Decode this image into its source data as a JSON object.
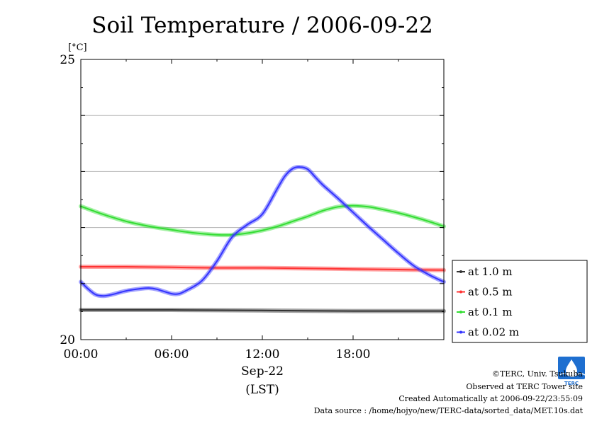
{
  "chart_data": {
    "type": "line",
    "title": "Soil Temperature / 2006-09-22",
    "ylabel": "[°C]",
    "ylim": [
      20,
      25
    ],
    "yticks": [
      "25",
      "20"
    ],
    "xlim": [
      0,
      24
    ],
    "xticks": [
      {
        "hour": 0,
        "label": "00:00"
      },
      {
        "hour": 6,
        "label": "06:00"
      },
      {
        "hour": 12,
        "label": "12:00"
      },
      {
        "hour": 18,
        "label": "18:00"
      }
    ],
    "xlabel_date": "Sep-22",
    "xlabel_zone": "(LST)",
    "grid": true,
    "legend_position": "right",
    "series": [
      {
        "name": "at 1.0 m",
        "color": "#333333",
        "x": [
          0,
          6,
          12,
          18,
          24
        ],
        "y": [
          20.53,
          20.53,
          20.52,
          20.51,
          20.51
        ]
      },
      {
        "name": "at 0.5 m",
        "color": "#ff3333",
        "x": [
          0,
          3,
          6,
          9,
          12,
          15,
          18,
          21,
          24
        ],
        "y": [
          21.3,
          21.3,
          21.29,
          21.28,
          21.28,
          21.27,
          21.26,
          21.25,
          21.24
        ]
      },
      {
        "name": "at 0.1 m",
        "color": "#33dd33",
        "x": [
          0,
          1,
          2,
          3,
          4,
          5,
          6,
          7,
          8,
          9,
          10,
          11,
          12,
          13,
          14,
          15,
          16,
          17,
          18,
          19,
          20,
          21,
          22,
          23,
          24
        ],
        "y": [
          22.38,
          22.28,
          22.19,
          22.11,
          22.05,
          22.0,
          21.96,
          21.92,
          21.89,
          21.87,
          21.87,
          21.9,
          21.95,
          22.02,
          22.11,
          22.2,
          22.3,
          22.37,
          22.39,
          22.37,
          22.32,
          22.26,
          22.19,
          22.11,
          22.02
        ]
      },
      {
        "name": "at 0.02 m",
        "color": "#3333ff",
        "x": [
          0,
          0.5,
          1,
          1.5,
          2,
          3,
          4,
          4.5,
          5,
          6,
          6.5,
          7,
          8,
          9,
          10,
          11,
          12,
          13,
          13.5,
          14,
          14.5,
          15,
          15.5,
          16,
          17,
          18,
          19,
          20,
          21,
          22,
          23,
          24
        ],
        "y": [
          21.03,
          20.9,
          20.8,
          20.78,
          20.8,
          20.87,
          20.91,
          20.92,
          20.9,
          20.82,
          20.82,
          20.88,
          21.05,
          21.4,
          21.83,
          22.05,
          22.24,
          22.7,
          22.92,
          23.05,
          23.08,
          23.04,
          22.9,
          22.76,
          22.52,
          22.27,
          22.02,
          21.78,
          21.54,
          21.32,
          21.16,
          21.03
        ]
      }
    ]
  },
  "credits": {
    "copyright": "©TERC, Univ. Tsukuba",
    "observed": "Observed at TERC Tower site",
    "created": "Created Automatically at 2006-09-22/23:55:09",
    "source": "Data source : /home/hojyo/new/TERC-data/sorted_data/MET.10s.dat",
    "logo_text": "TERC"
  }
}
